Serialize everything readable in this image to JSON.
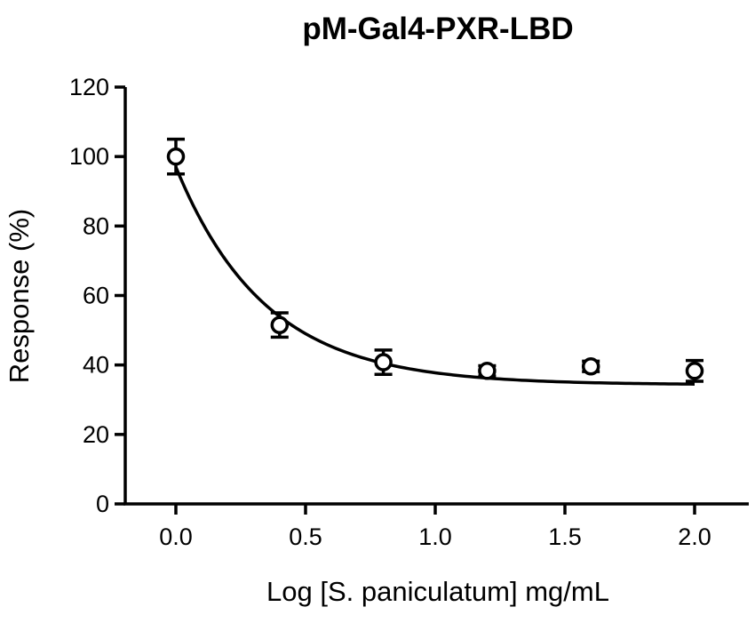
{
  "chart_data": {
    "type": "scatter",
    "title": "pM-Gal4-PXR-LBD",
    "xlabel": "Log [S. paniculatum] mg/mL",
    "ylabel": "Response (%)",
    "xlim": [
      -0.2,
      2.2
    ],
    "ylim": [
      0,
      120
    ],
    "xticks": [
      0.0,
      0.5,
      1.0,
      1.5,
      2.0
    ],
    "xtick_labels": [
      "0.0",
      "0.5",
      "1.0",
      "1.5",
      "2.0"
    ],
    "yticks": [
      0,
      20,
      40,
      60,
      80,
      100,
      120
    ],
    "ytick_labels": [
      "0",
      "20",
      "40",
      "60",
      "80",
      "100",
      "120"
    ],
    "grid": false,
    "series": [
      {
        "marker": "open-circle",
        "x": [
          0.0,
          0.4,
          0.8,
          1.2,
          1.6,
          2.0
        ],
        "y": [
          100,
          51.5,
          40.8,
          38.3,
          39.6,
          38.3
        ],
        "error": [
          5.0,
          3.5,
          3.5,
          1.5,
          1.5,
          3.0
        ]
      }
    ],
    "fit_curve": {
      "model": "exponential decay",
      "bottom": 34.3,
      "top": 97,
      "k": 2.9,
      "x_range": [
        0.0,
        2.0
      ]
    }
  }
}
